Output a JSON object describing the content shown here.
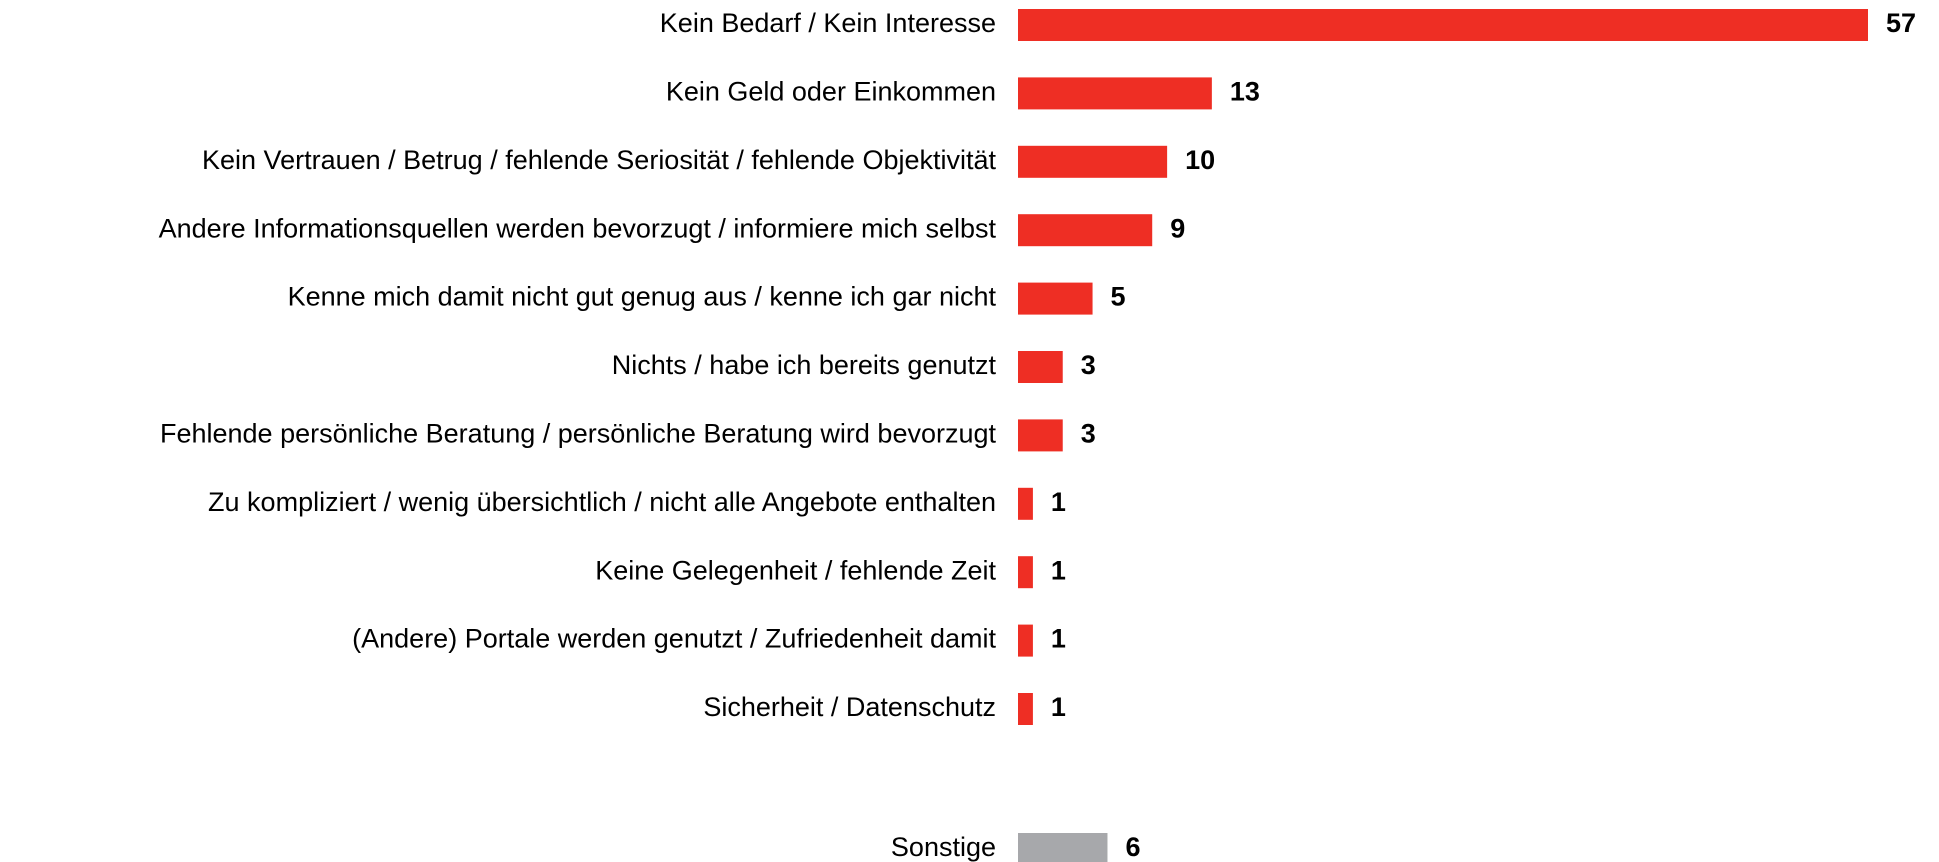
{
  "chart_data": {
    "type": "hbar",
    "categories": [
      "Kein Bedarf / Kein Interesse",
      "Kein Geld oder Einkommen",
      "Kein Vertrauen / Betrug / fehlende Seriosität / fehlende Objektivität",
      "Andere Informationsquellen werden bevorzugt / informiere mich selbst",
      "Kenne mich damit nicht gut genug aus / kenne ich gar nicht",
      "Nichts / habe ich bereits genutzt",
      "Fehlende persönliche Beratung / persönliche Beratung wird bevorzugt",
      "Zu kompliziert / wenig übersichtlich / nicht alle Angebote enthalten",
      "Keine Gelegenheit / fehlende Zeit",
      "(Andere) Portale werden genutzt / Zufriedenheit damit",
      "Sicherheit / Datenschutz",
      "Sonstige"
    ],
    "values": [
      57,
      13,
      10,
      9,
      5,
      3,
      3,
      1,
      1,
      1,
      1,
      6
    ],
    "colors": [
      "#ee2e24",
      "#ee2e24",
      "#ee2e24",
      "#ee2e24",
      "#ee2e24",
      "#ee2e24",
      "#ee2e24",
      "#ee2e24",
      "#ee2e24",
      "#ee2e24",
      "#ee2e24",
      "#a7a8ab"
    ]
  }
}
